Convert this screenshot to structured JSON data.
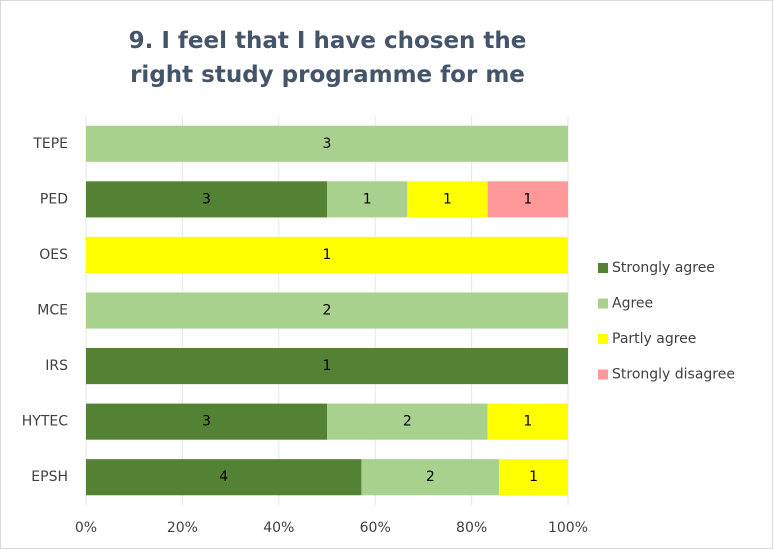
{
  "chart_data": {
    "type": "bar",
    "orientation": "horizontal",
    "stack": "percent",
    "title": "9. I feel that I have chosen the right study programme for me",
    "categories": [
      "TEPE",
      "PED",
      "OES",
      "MCE",
      "IRS",
      "HYTEC",
      "EPSH"
    ],
    "series": [
      {
        "name": "Strongly agree",
        "color": "#548235",
        "values": [
          0,
          3,
          0,
          0,
          1,
          3,
          4
        ]
      },
      {
        "name": "Agree",
        "color": "#a9d18e",
        "values": [
          3,
          1,
          0,
          2,
          0,
          2,
          2
        ]
      },
      {
        "name": "Partly agree",
        "color": "#ffff00",
        "values": [
          0,
          1,
          1,
          0,
          0,
          1,
          1
        ]
      },
      {
        "name": "Strongly disagree",
        "color": "#ff9999",
        "values": [
          0,
          1,
          0,
          0,
          0,
          0,
          0
        ]
      }
    ],
    "xlim": [
      0,
      100
    ],
    "xticks": [
      {
        "value": 0,
        "label": "0%"
      },
      {
        "value": 20,
        "label": "20%"
      },
      {
        "value": 40,
        "label": "40%"
      },
      {
        "value": 60,
        "label": "60%"
      },
      {
        "value": 80,
        "label": "80%"
      },
      {
        "value": 100,
        "label": "100%"
      }
    ],
    "grid": true,
    "legend": "right"
  }
}
